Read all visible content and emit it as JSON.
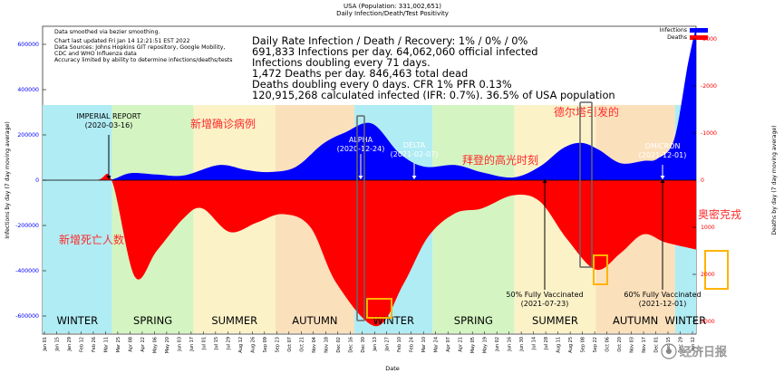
{
  "header": {
    "title": "USA (Population: 331,002,651)",
    "subtitle": "Daily Infection/Death/Test Positivity"
  },
  "info_small": [
    "Data smoothed via bezier smoothing.",
    "Chart last updated Fri Jan 14 12:21:51 EST 2022",
    "Data Sources: Johns Hopkins GIT repository, Google Mobility,",
    "CDC and WHO Influenza data",
    "Accuracy limited by ability to determine infections/deaths/tests"
  ],
  "stats_large": [
    "Daily Rate Infection / Death / Recovery: 1% / 0% / 0%",
    "691,833 Infections per day.  64,062,060 official infected",
    "Infections doubling every 71 days.",
    "1,472 Deaths per day.  846,463 total dead",
    "Deaths doubling every 0 days.  CFR 1%  PFR 0.13%",
    "120,915,268 calculated infected (IFR: 0.7%).  36.5% of USA population"
  ],
  "legend": [
    {
      "label": "Infections",
      "color": "#0000ff"
    },
    {
      "label": "Deaths",
      "color": "#ff0000"
    }
  ],
  "colors": {
    "winter": "#b0ecf4",
    "spring": "#d4f5c2",
    "summer": "#fbf2c8",
    "autumn": "#fbe0bc",
    "infections": "#0000ff",
    "deaths": "#ff0000",
    "left_axis_text": "#0000ff",
    "right_axis_text": "#ff0000",
    "chinese_annot": "#ff2a2a",
    "marker_gray": "#666666",
    "marker_orange": "#ffb300"
  },
  "seasons": [
    {
      "label": "WINTER",
      "from": "2020-01-01",
      "to": "2020-03-20",
      "kind": "winter"
    },
    {
      "label": "SPRING",
      "from": "2020-03-20",
      "to": "2020-06-21",
      "kind": "spring"
    },
    {
      "label": "SUMMER",
      "from": "2020-06-21",
      "to": "2020-09-22",
      "kind": "summer"
    },
    {
      "label": "AUTUMN",
      "from": "2020-09-22",
      "to": "2020-12-21",
      "kind": "autumn"
    },
    {
      "label": "WINTER",
      "from": "2020-12-21",
      "to": "2021-03-20",
      "kind": "winter"
    },
    {
      "label": "SPRING",
      "from": "2021-03-20",
      "to": "2021-06-21",
      "kind": "spring"
    },
    {
      "label": "SUMMER",
      "from": "2021-06-21",
      "to": "2021-09-22",
      "kind": "summer"
    },
    {
      "label": "AUTUMN",
      "from": "2021-09-22",
      "to": "2021-12-21",
      "kind": "autumn"
    },
    {
      "label": "WINTER",
      "from": "2021-12-21",
      "to": "2022-01-14",
      "kind": "winter"
    }
  ],
  "annotations_en": [
    {
      "lines": [
        "IMPERIAL REPORT",
        "(2020-03-16)"
      ],
      "date": "2020-03-16"
    },
    {
      "lines": [
        "ALPHA",
        "(2020-12-24)"
      ],
      "date": "2020-12-24"
    },
    {
      "lines": [
        "DELTA",
        "(2021-02-07)"
      ],
      "date": "2021-02-07"
    },
    {
      "lines": [
        "OMICRON",
        "(2021-12-01)"
      ],
      "date": "2021-12-01"
    },
    {
      "lines": [
        "50% Fully Vaccinated",
        "(2021-07-23)"
      ],
      "date": "2021-07-23"
    },
    {
      "lines": [
        "60% Fully Vaccinated",
        "(2021-12-01)"
      ],
      "date": "2021-12-01"
    }
  ],
  "annotations_cn": [
    "新增确诊病例",
    "新增死亡人数",
    "德尔塔引发的",
    "拜登的高光时刻",
    "奥密克戎"
  ],
  "watermark": "经济日报",
  "chart_data": {
    "type": "area",
    "xlabel": "Date",
    "ylabel_left": "Infections by day (7 day moving average)",
    "ylabel_right": "Deaths by day (7 day moving average)",
    "ylim_left": [
      -650000,
      650000
    ],
    "ylim_right": [
      3000,
      -3000
    ],
    "left_ticks": [
      -600000,
      -400000,
      -200000,
      0,
      200000,
      400000,
      600000
    ],
    "left_tick_labels": [
      "-600000",
      "-400000",
      "-200000",
      "0",
      "200000",
      "400000",
      "600000"
    ],
    "right_ticks": [
      3000,
      2000,
      1000,
      0,
      -1000,
      -2000,
      -3000
    ],
    "right_tick_labels": [
      "3000",
      "2000",
      "1000",
      "0",
      "-1000",
      "-2000",
      "-3000"
    ],
    "x_range": [
      "2020-01-01",
      "2022-01-14"
    ],
    "x_tick_labels": [
      "Jan 01",
      "Jan 15",
      "Jan 29",
      "Feb 12",
      "Feb 26",
      "Mar 11",
      "Mar 25",
      "Apr 08",
      "Apr 22",
      "May 06",
      "May 20",
      "Jun 03",
      "Jun 17",
      "Jul 01",
      "Jul 15",
      "Jul 29",
      "Aug 12",
      "Aug 26",
      "Sep 09",
      "Sep 23",
      "Oct 07",
      "Oct 21",
      "Nov 04",
      "Nov 18",
      "Dec 02",
      "Dec 16",
      "Dec 30",
      "Jan 13",
      "Jan 27",
      "Feb 10",
      "Feb 24",
      "Mar 10",
      "Mar 24",
      "Apr 07",
      "Apr 21",
      "May 05",
      "May 19",
      "Jun 02",
      "Jun 16",
      "Jun 30",
      "Jul 14",
      "Jul 28",
      "Aug 11",
      "Aug 25",
      "Sep 08",
      "Sep 22",
      "Oct 06",
      "Oct 20",
      "Nov 03",
      "Nov 17",
      "Dec 01",
      "Dec 15",
      "Dec 29",
      "Jan 12"
    ],
    "series": [
      {
        "name": "Infections",
        "axis": "left",
        "x": [
          "2020-01-01",
          "2020-03-01",
          "2020-03-20",
          "2020-04-10",
          "2020-05-10",
          "2020-06-10",
          "2020-07-20",
          "2020-08-20",
          "2020-09-15",
          "2020-10-15",
          "2020-11-15",
          "2020-12-10",
          "2021-01-10",
          "2021-02-10",
          "2021-03-10",
          "2021-04-15",
          "2021-05-15",
          "2021-06-20",
          "2021-07-20",
          "2021-08-15",
          "2021-09-05",
          "2021-09-25",
          "2021-10-20",
          "2021-11-15",
          "2021-12-01",
          "2021-12-20",
          "2022-01-05",
          "2022-01-14"
        ],
        "values": [
          0,
          0,
          3000,
          31000,
          25000,
          21000,
          67000,
          45000,
          36000,
          58000,
          160000,
          210000,
          250000,
          120000,
          60000,
          67000,
          35000,
          12000,
          60000,
          140000,
          165000,
          135000,
          75000,
          85000,
          95000,
          180000,
          520000,
          691833
        ]
      },
      {
        "name": "Deaths",
        "axis": "right",
        "x": [
          "2020-01-01",
          "2020-03-01",
          "2020-03-20",
          "2020-04-15",
          "2020-05-10",
          "2020-06-10",
          "2020-07-01",
          "2020-08-01",
          "2020-09-01",
          "2020-10-01",
          "2020-11-01",
          "2020-12-01",
          "2021-01-15",
          "2021-02-15",
          "2021-03-15",
          "2021-04-15",
          "2021-05-15",
          "2021-06-20",
          "2021-07-20",
          "2021-08-20",
          "2021-09-22",
          "2021-10-20",
          "2021-11-15",
          "2021-12-10",
          "2022-01-14"
        ],
        "values": [
          0,
          0,
          20,
          2050,
          1500,
          800,
          600,
          1100,
          900,
          720,
          1000,
          2200,
          3100,
          2200,
          1200,
          700,
          600,
          320,
          450,
          1250,
          1900,
          1550,
          1150,
          1320,
          1472
        ]
      }
    ]
  }
}
